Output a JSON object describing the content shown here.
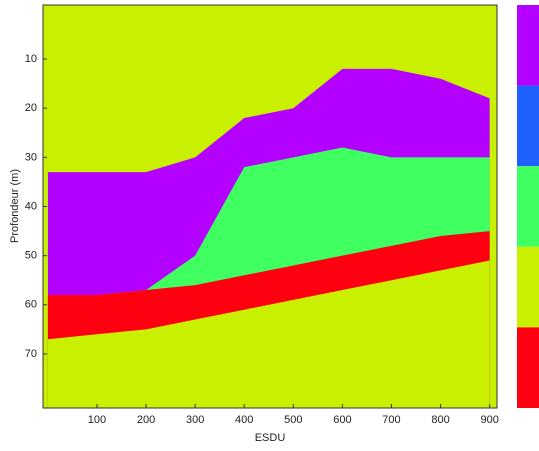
{
  "chart_data": {
    "type": "area",
    "x_label": "ESDU",
    "y_label": "Profondeur (m)",
    "background": "#c8f000",
    "x": [
      0,
      100,
      200,
      300,
      400,
      500,
      600,
      700,
      800,
      900
    ],
    "series": [
      {
        "color": "#b400ff",
        "values": [
          33,
          33,
          33,
          30,
          22,
          20,
          12,
          12,
          14,
          18
        ]
      },
      {
        "color": "#40ff60",
        "values": [
          58,
          58,
          57,
          50,
          32,
          30,
          28,
          30,
          30,
          30
        ]
      },
      {
        "color": "#ff0010",
        "values": [
          58,
          58,
          57,
          56,
          54,
          52,
          50,
          48,
          46,
          45
        ]
      },
      {
        "color": "#c8f000",
        "values": [
          67,
          66,
          65,
          63,
          61,
          59,
          57,
          55,
          53,
          51
        ]
      }
    ],
    "xlim": [
      -10,
      915
    ],
    "xticks": [
      100,
      200,
      300,
      400,
      500,
      600,
      700,
      800,
      900
    ],
    "ylim": [
      -1,
      81
    ],
    "yticks": [
      10,
      20,
      30,
      40,
      50,
      60,
      70
    ],
    "colorbar": [
      "#b400ff",
      "#2060ff",
      "#40ff60",
      "#c8f000",
      "#ff0010"
    ]
  }
}
